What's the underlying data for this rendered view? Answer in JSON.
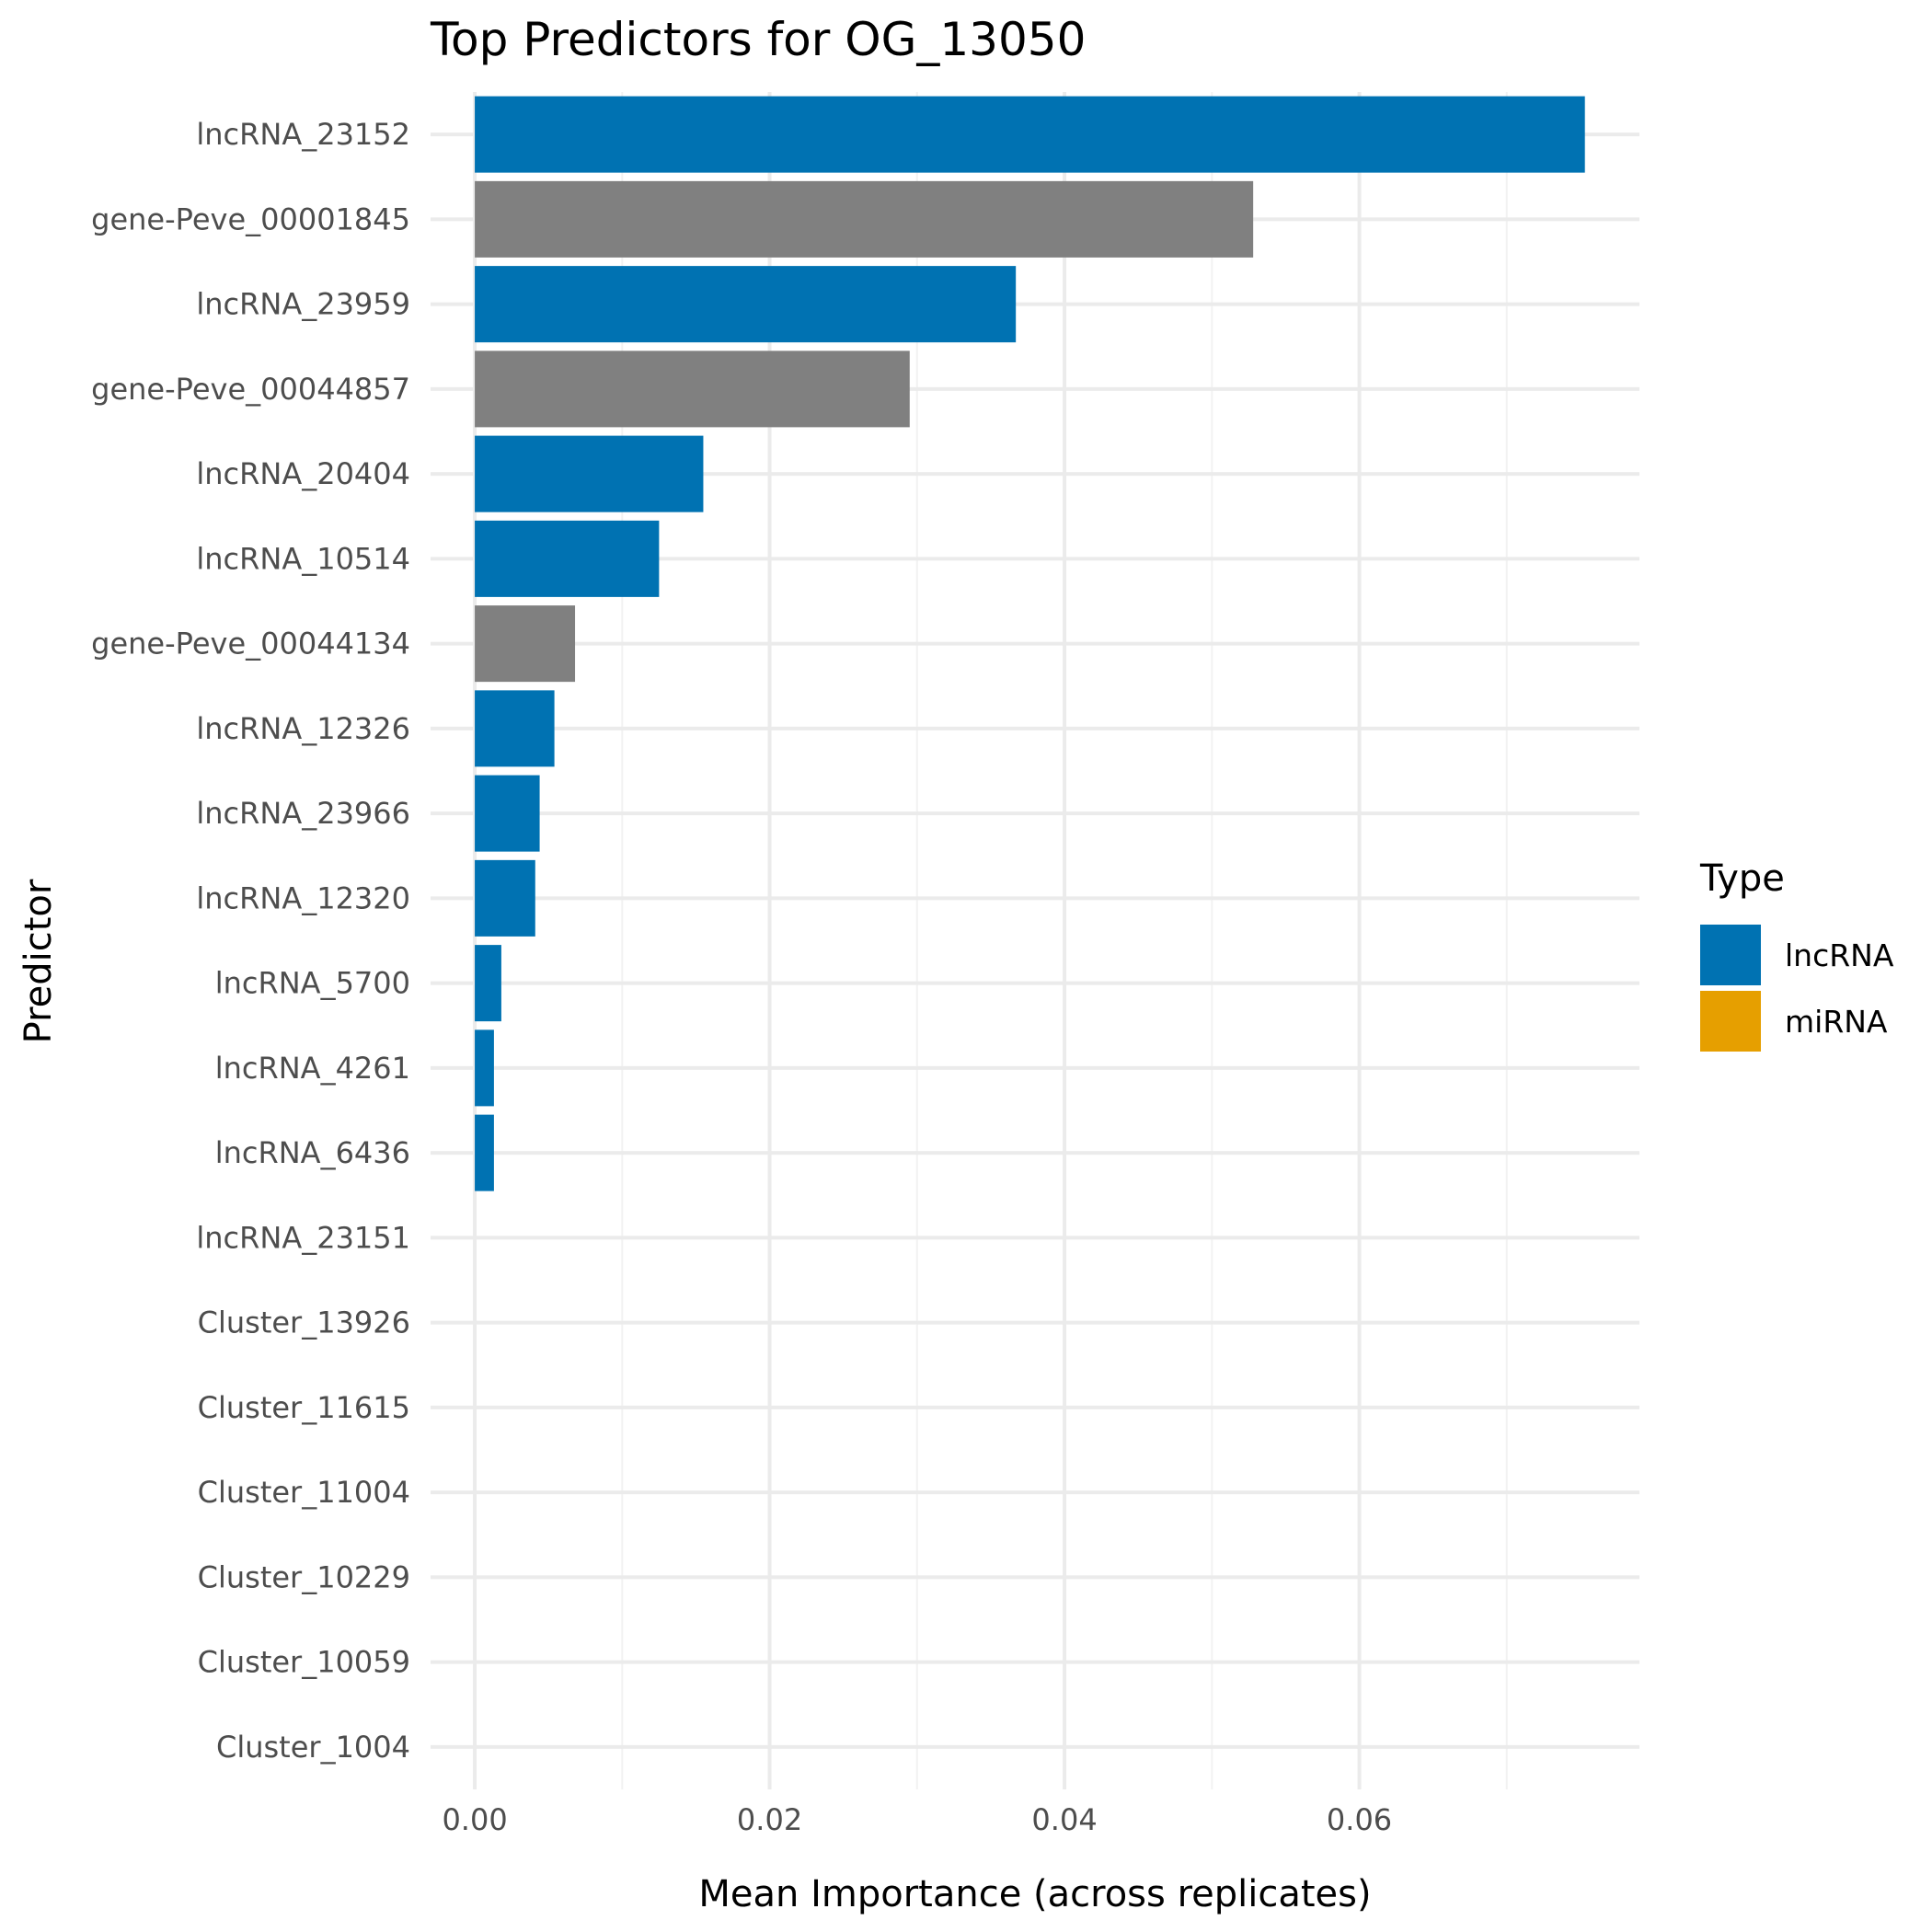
{
  "chart_data": {
    "type": "bar",
    "orientation": "horizontal",
    "title": "Top Predictors for OG_13050",
    "xlabel": "Mean Importance (across replicates)",
    "ylabel": "Predictor",
    "xlim": [
      -0.003,
      0.079
    ],
    "x_ticks": [
      0,
      0.02,
      0.04,
      0.06
    ],
    "x_tick_labels": [
      "0.00",
      "0.02",
      "0.04",
      "0.06"
    ],
    "x_minor_ticks": [
      0.01,
      0.03,
      0.05,
      0.07
    ],
    "grid": true,
    "legend": {
      "title": "Type",
      "position": "right",
      "entries": [
        {
          "label": "lncRNA",
          "color": "#0072B2"
        },
        {
          "label": "miRNA",
          "color": "#E69F00"
        }
      ]
    },
    "type_colors": {
      "lncRNA": "#0072B2",
      "miRNA": "#E69F00",
      "gene": "#808080"
    },
    "categories": [
      "lncRNA_23152",
      "gene-Peve_00001845",
      "lncRNA_23959",
      "gene-Peve_00044857",
      "lncRNA_20404",
      "lncRNA_10514",
      "gene-Peve_00044134",
      "lncRNA_12326",
      "lncRNA_23966",
      "lncRNA_12320",
      "lncRNA_5700",
      "lncRNA_4261",
      "lncRNA_6436",
      "lncRNA_23151",
      "Cluster_13926",
      "Cluster_11615",
      "Cluster_11004",
      "Cluster_10229",
      "Cluster_10059",
      "Cluster_1004"
    ],
    "values": [
      0.0753,
      0.0528,
      0.0367,
      0.0295,
      0.0155,
      0.0125,
      0.0068,
      0.0054,
      0.0044,
      0.0041,
      0.0018,
      0.0013,
      0.0013,
      0,
      0,
      0,
      0,
      0,
      0,
      0
    ],
    "bar_types": [
      "lncRNA",
      "gene",
      "lncRNA",
      "gene",
      "lncRNA",
      "lncRNA",
      "gene",
      "lncRNA",
      "lncRNA",
      "lncRNA",
      "lncRNA",
      "lncRNA",
      "lncRNA",
      "lncRNA",
      "miRNA",
      "miRNA",
      "miRNA",
      "miRNA",
      "miRNA",
      "miRNA"
    ]
  }
}
